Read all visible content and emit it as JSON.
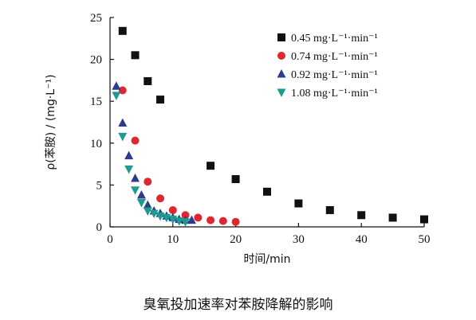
{
  "caption": "臭氧投加速率对苯胺降解的影响",
  "chart_data": {
    "type": "scatter",
    "title": "",
    "xlabel": "时间/min",
    "ylabel": "ρ(苯胺) / (mg·L⁻¹)",
    "xlim": [
      0,
      50
    ],
    "ylim": [
      0,
      25
    ],
    "xticks": [
      0,
      10,
      20,
      30,
      40,
      50
    ],
    "yticks": [
      0,
      5,
      10,
      15,
      20,
      25
    ],
    "grid": false,
    "legend_position": "top-right",
    "series": [
      {
        "name": "0.45 mg·L⁻¹·min⁻¹",
        "marker": "square",
        "color": "#111111",
        "x": [
          2,
          4,
          6,
          8,
          16,
          20,
          25,
          30,
          35,
          40,
          45,
          50
        ],
        "y": [
          23.4,
          20.5,
          17.4,
          15.2,
          7.3,
          5.7,
          4.2,
          2.8,
          2.0,
          1.4,
          1.1,
          0.9
        ]
      },
      {
        "name": "0.74 mg·L⁻¹·min⁻¹",
        "marker": "circle",
        "color": "#e0262f",
        "x": [
          2,
          4,
          6,
          8,
          10,
          12,
          14,
          16,
          18,
          20
        ],
        "y": [
          16.3,
          10.3,
          5.4,
          3.4,
          2.0,
          1.4,
          1.1,
          0.8,
          0.7,
          0.6
        ]
      },
      {
        "name": "0.92 mg·L⁻¹·min⁻¹",
        "marker": "triangle-up",
        "color": "#2b3c8f",
        "x": [
          1,
          2,
          3,
          4,
          5,
          6,
          7,
          8,
          9,
          10,
          11,
          12,
          13
        ],
        "y": [
          16.8,
          12.4,
          8.5,
          5.8,
          3.8,
          2.6,
          1.9,
          1.6,
          1.3,
          1.1,
          0.9,
          0.8,
          0.8
        ]
      },
      {
        "name": "1.08 mg·L⁻¹·min⁻¹",
        "marker": "triangle-down",
        "color": "#1e9a8e",
        "x": [
          1,
          2,
          3,
          4,
          5,
          6,
          7,
          8,
          9,
          10,
          11,
          12
        ],
        "y": [
          15.7,
          10.8,
          6.9,
          4.4,
          2.9,
          1.9,
          1.6,
          1.3,
          1.1,
          0.9,
          0.7,
          0.6
        ]
      }
    ]
  }
}
